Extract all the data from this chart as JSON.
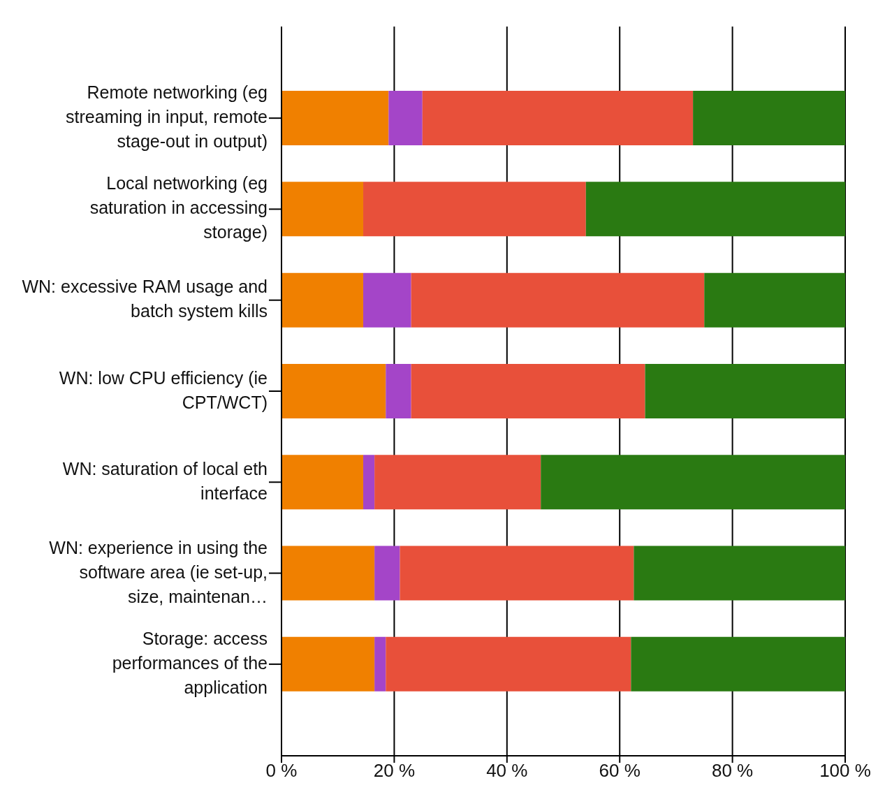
{
  "chart_data": {
    "type": "bar",
    "orientation": "horizontal",
    "stacked": true,
    "categories": [
      "Remote networking (eg streaming in input, remote stage-out in output)",
      "Local networking (eg saturation in accessing storage)",
      "WN: excessive RAM usage and batch system kills",
      "WN: low CPU efficiency (ie CPT/WCT)",
      "WN: saturation of local eth interface",
      "WN: experience in using the software area (ie set-up, size, maintenan…",
      "Storage: access performances of the application"
    ],
    "series": [
      {
        "color": "#f08000",
        "values": [
          19,
          14.5,
          14.5,
          18.5,
          14.5,
          16.5,
          16.5
        ]
      },
      {
        "color": "#a445c8",
        "values": [
          6,
          0,
          8.5,
          4.5,
          2,
          4.5,
          2
        ]
      },
      {
        "color": "#e8503a",
        "values": [
          48,
          39.5,
          52,
          41.5,
          29.5,
          41.5,
          43.5
        ]
      },
      {
        "color": "#2a7a12",
        "values": [
          27,
          46,
          25,
          35.5,
          54,
          37.5,
          38
        ]
      }
    ],
    "xlim": [
      0,
      100
    ],
    "xticks": [
      {
        "value": 0,
        "label": "0 %"
      },
      {
        "value": 20,
        "label": "20 %"
      },
      {
        "value": 40,
        "label": "40 %"
      },
      {
        "value": 60,
        "label": "60 %"
      },
      {
        "value": 80,
        "label": "80 %"
      },
      {
        "value": 100,
        "label": "100 %"
      }
    ],
    "grid": "x",
    "legend": false
  }
}
